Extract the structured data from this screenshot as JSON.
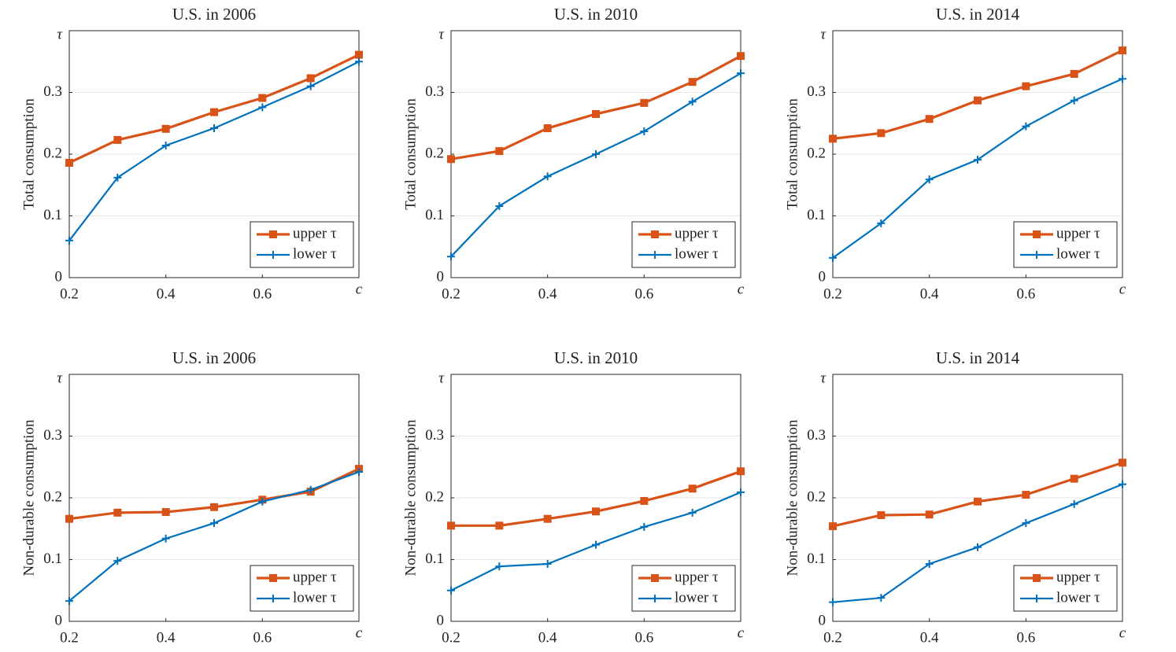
{
  "chart_data": [
    {
      "type": "line",
      "title": "U.S. in 2006",
      "ylabel": "Total consumption",
      "x": [
        0.2,
        0.3,
        0.4,
        0.5,
        0.6,
        0.7,
        0.8
      ],
      "xlim": [
        0.2,
        0.8
      ],
      "ylim": [
        0,
        0.4
      ],
      "xticks": [
        0.2,
        0.4,
        0.6,
        {
          "value": 0.8,
          "label": "c"
        }
      ],
      "yticks": [
        0,
        0.1,
        0.2,
        0.3,
        {
          "value": 0.4,
          "label": "τ"
        }
      ],
      "grid": "y",
      "legend": "lower right",
      "series": [
        {
          "name": "upper τ",
          "color": "#d95319",
          "marker": "square",
          "values": [
            0.186,
            0.223,
            0.241,
            0.268,
            0.291,
            0.323,
            0.361
          ]
        },
        {
          "name": "lower τ",
          "color": "#0072bd",
          "marker": "plus",
          "values": [
            0.06,
            0.162,
            0.214,
            0.242,
            0.276,
            0.31,
            0.35
          ]
        }
      ]
    },
    {
      "type": "line",
      "title": "U.S. in 2010",
      "ylabel": "Total consumption",
      "x": [
        0.2,
        0.3,
        0.4,
        0.5,
        0.6,
        0.7,
        0.8
      ],
      "xlim": [
        0.2,
        0.8
      ],
      "ylim": [
        0,
        0.4
      ],
      "xticks": [
        0.2,
        0.4,
        0.6,
        {
          "value": 0.8,
          "label": "c"
        }
      ],
      "yticks": [
        0,
        0.1,
        0.2,
        0.3,
        {
          "value": 0.4,
          "label": "τ"
        }
      ],
      "grid": "y",
      "legend": "lower right",
      "series": [
        {
          "name": "upper τ",
          "color": "#d95319",
          "marker": "square",
          "values": [
            0.192,
            0.205,
            0.242,
            0.265,
            0.283,
            0.317,
            0.359
          ]
        },
        {
          "name": "lower τ",
          "color": "#0072bd",
          "marker": "plus",
          "values": [
            0.034,
            0.116,
            0.164,
            0.2,
            0.237,
            0.285,
            0.331
          ]
        }
      ]
    },
    {
      "type": "line",
      "title": "U.S. in 2014",
      "ylabel": "Total consumption",
      "x": [
        0.2,
        0.3,
        0.4,
        0.5,
        0.6,
        0.7,
        0.8
      ],
      "xlim": [
        0.2,
        0.8
      ],
      "ylim": [
        0,
        0.4
      ],
      "xticks": [
        0.2,
        0.4,
        0.6,
        {
          "value": 0.8,
          "label": "c"
        }
      ],
      "yticks": [
        0,
        0.1,
        0.2,
        0.3,
        {
          "value": 0.4,
          "label": "τ"
        }
      ],
      "grid": "y",
      "legend": "lower right",
      "series": [
        {
          "name": "upper τ",
          "color": "#d95319",
          "marker": "square",
          "values": [
            0.225,
            0.234,
            0.257,
            0.287,
            0.31,
            0.33,
            0.368
          ]
        },
        {
          "name": "lower τ",
          "color": "#0072bd",
          "marker": "plus",
          "values": [
            0.032,
            0.088,
            0.159,
            0.191,
            0.245,
            0.287,
            0.322
          ]
        }
      ]
    },
    {
      "type": "line",
      "title": "U.S. in 2006",
      "ylabel": "Non-durable consumption",
      "x": [
        0.2,
        0.3,
        0.4,
        0.5,
        0.6,
        0.7,
        0.8
      ],
      "xlim": [
        0.2,
        0.8
      ],
      "ylim": [
        0,
        0.4
      ],
      "xticks": [
        0.2,
        0.4,
        0.6,
        {
          "value": 0.8,
          "label": "c"
        }
      ],
      "yticks": [
        0,
        0.1,
        0.2,
        0.3,
        {
          "value": 0.4,
          "label": "τ"
        }
      ],
      "grid": "y",
      "legend": "lower right",
      "series": [
        {
          "name": "upper τ",
          "color": "#d95319",
          "marker": "square",
          "values": [
            0.166,
            0.176,
            0.177,
            0.185,
            0.197,
            0.21,
            0.247
          ]
        },
        {
          "name": "lower τ",
          "color": "#0072bd",
          "marker": "plus",
          "values": [
            0.033,
            0.098,
            0.134,
            0.159,
            0.194,
            0.213,
            0.242
          ]
        }
      ]
    },
    {
      "type": "line",
      "title": "U.S. in 2010",
      "ylabel": "Non-durable consumption",
      "x": [
        0.2,
        0.3,
        0.4,
        0.5,
        0.6,
        0.7,
        0.8
      ],
      "xlim": [
        0.2,
        0.8
      ],
      "ylim": [
        0,
        0.4
      ],
      "xticks": [
        0.2,
        0.4,
        0.6,
        {
          "value": 0.8,
          "label": "c"
        }
      ],
      "yticks": [
        0,
        0.1,
        0.2,
        0.3,
        {
          "value": 0.4,
          "label": "τ"
        }
      ],
      "grid": "y",
      "legend": "lower right",
      "series": [
        {
          "name": "upper τ",
          "color": "#d95319",
          "marker": "square",
          "values": [
            0.155,
            0.155,
            0.166,
            0.178,
            0.195,
            0.215,
            0.243
          ]
        },
        {
          "name": "lower τ",
          "color": "#0072bd",
          "marker": "plus",
          "values": [
            0.05,
            0.089,
            0.093,
            0.124,
            0.153,
            0.176,
            0.209
          ]
        }
      ]
    },
    {
      "type": "line",
      "title": "U.S. in 2014",
      "ylabel": "Non-durable consumption",
      "x": [
        0.2,
        0.3,
        0.4,
        0.5,
        0.6,
        0.7,
        0.8
      ],
      "xlim": [
        0.2,
        0.8
      ],
      "ylim": [
        0,
        0.4
      ],
      "xticks": [
        0.2,
        0.4,
        0.6,
        {
          "value": 0.8,
          "label": "c"
        }
      ],
      "yticks": [
        0,
        0.1,
        0.2,
        0.3,
        {
          "value": 0.4,
          "label": "τ"
        }
      ],
      "grid": "y",
      "legend": "lower right",
      "series": [
        {
          "name": "upper τ",
          "color": "#d95319",
          "marker": "square",
          "values": [
            0.154,
            0.172,
            0.173,
            0.194,
            0.205,
            0.231,
            0.257
          ]
        },
        {
          "name": "lower τ",
          "color": "#0072bd",
          "marker": "plus",
          "values": [
            0.031,
            0.038,
            0.093,
            0.12,
            0.159,
            0.19,
            0.222
          ]
        }
      ]
    }
  ]
}
